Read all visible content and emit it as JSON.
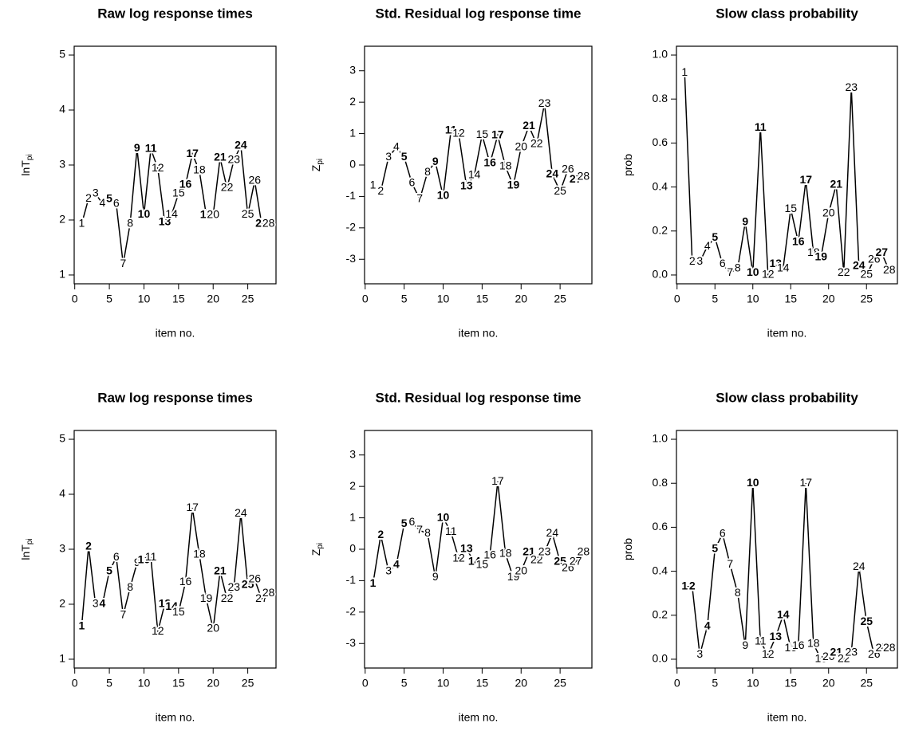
{
  "chart_data": [
    {
      "type": "line",
      "title": "Raw log response times",
      "xlabel": "item no.",
      "ylabel": "lnT",
      "ylabel_sub": "pi",
      "x": [
        1,
        2,
        3,
        4,
        5,
        6,
        7,
        8,
        9,
        10,
        11,
        12,
        13,
        14,
        15,
        16,
        17,
        18,
        19,
        20,
        21,
        22,
        23,
        24,
        25,
        26,
        27,
        28
      ],
      "values": [
        1.93,
        2.39,
        2.48,
        2.3,
        2.38,
        2.29,
        1.2,
        1.93,
        3.3,
        2.1,
        3.29,
        2.94,
        1.96,
        2.1,
        2.48,
        2.64,
        3.2,
        2.9,
        2.09,
        2.09,
        3.13,
        2.58,
        3.09,
        3.35,
        2.1,
        2.71,
        1.93,
        1.93
      ],
      "bold": [
        5,
        9,
        10,
        11,
        13,
        16,
        17,
        19,
        21,
        24,
        27
      ],
      "color": "#000000",
      "xlim": [
        -0.08,
        29.08
      ],
      "xticks": [
        0,
        5,
        10,
        15,
        20,
        25
      ],
      "ylim": [
        0.84,
        5.16
      ],
      "yticks": [
        1,
        2,
        3,
        4,
        5
      ]
    },
    {
      "type": "line",
      "title": "Std. Residual log response time",
      "xlabel": "item no.",
      "ylabel": "Z",
      "ylabel_sub": "pi",
      "x": [
        1,
        2,
        3,
        4,
        5,
        6,
        7,
        8,
        9,
        10,
        11,
        12,
        13,
        14,
        15,
        16,
        17,
        18,
        19,
        20,
        21,
        22,
        23,
        24,
        25,
        26,
        27,
        28
      ],
      "values": [
        -0.66,
        -0.84,
        0.25,
        0.56,
        0.25,
        -0.58,
        -1.09,
        -0.23,
        0.1,
        -0.99,
        1.09,
        0.99,
        -0.68,
        -0.33,
        0.96,
        0.05,
        0.94,
        -0.05,
        -0.66,
        0.56,
        1.24,
        0.66,
        1.95,
        -0.3,
        -0.84,
        -0.15,
        -0.46,
        -0.38
      ],
      "bold": [
        5,
        9,
        10,
        11,
        13,
        16,
        17,
        19,
        21,
        24,
        27
      ],
      "color": "#000000",
      "xlim": [
        -0.08,
        29.08
      ],
      "xticks": [
        0,
        5,
        10,
        15,
        20,
        25
      ],
      "ylim": [
        -3.78,
        3.78
      ],
      "yticks": [
        -3,
        -2,
        -1,
        0,
        1,
        2,
        3
      ]
    },
    {
      "type": "line",
      "title": "Slow class probability",
      "xlabel": "item no.",
      "ylabel": "prob",
      "x": [
        1,
        2,
        3,
        4,
        5,
        6,
        7,
        8,
        9,
        10,
        11,
        12,
        13,
        14,
        15,
        16,
        17,
        18,
        19,
        20,
        21,
        22,
        23,
        24,
        25,
        26,
        27,
        28
      ],
      "values": [
        0.92,
        0.06,
        0.06,
        0.13,
        0.17,
        0.05,
        0.01,
        0.03,
        0.24,
        0.01,
        0.67,
        0.0,
        0.05,
        0.03,
        0.3,
        0.15,
        0.43,
        0.1,
        0.08,
        0.28,
        0.41,
        0.01,
        0.85,
        0.04,
        0.0,
        0.07,
        0.1,
        0.02
      ],
      "bold": [
        5,
        9,
        10,
        11,
        13,
        16,
        17,
        19,
        21,
        24,
        27
      ],
      "color": "#000000",
      "xlim": [
        -0.08,
        29.08
      ],
      "xticks": [
        0,
        5,
        10,
        15,
        20,
        25
      ],
      "ylim": [
        -0.04,
        1.04
      ],
      "yticks": [
        {
          "value": 0,
          "label": "0.0"
        },
        {
          "value": 0.2,
          "label": "0.2"
        },
        {
          "value": 0.4,
          "label": "0.4"
        },
        {
          "value": 0.6,
          "label": "0.6"
        },
        {
          "value": 0.8,
          "label": "0.8"
        },
        {
          "value": 1,
          "label": "1.0"
        }
      ]
    },
    {
      "type": "line",
      "title": "Raw log response times",
      "xlabel": "item no.",
      "ylabel": "lnT",
      "ylabel_sub": "pi",
      "x": [
        1,
        2,
        3,
        4,
        5,
        6,
        7,
        8,
        9,
        10,
        11,
        12,
        13,
        14,
        15,
        16,
        17,
        18,
        19,
        20,
        21,
        22,
        23,
        24,
        25,
        26,
        27,
        28
      ],
      "values": [
        1.6,
        3.05,
        2.0,
        2.0,
        2.6,
        2.85,
        1.8,
        2.3,
        2.75,
        2.8,
        2.85,
        1.5,
        2.0,
        1.95,
        1.85,
        2.4,
        3.75,
        2.9,
        2.1,
        1.55,
        2.6,
        2.1,
        2.3,
        3.65,
        2.35,
        2.45,
        2.1,
        2.2
      ],
      "bold": [
        1,
        2,
        4,
        5,
        10,
        13,
        14,
        21,
        25
      ],
      "color": "#000000",
      "xlim": [
        -0.08,
        29.08
      ],
      "xticks": [
        0,
        5,
        10,
        15,
        20,
        25
      ],
      "ylim": [
        0.84,
        5.16
      ],
      "yticks": [
        1,
        2,
        3,
        4,
        5
      ]
    },
    {
      "type": "line",
      "title": "Std. Residual log response time",
      "xlabel": "item no.",
      "ylabel": "Z",
      "ylabel_sub": "pi",
      "x": [
        1,
        2,
        3,
        4,
        5,
        6,
        7,
        8,
        9,
        10,
        11,
        12,
        13,
        14,
        15,
        16,
        17,
        18,
        19,
        20,
        21,
        22,
        23,
        24,
        25,
        26,
        27,
        28
      ],
      "values": [
        -1.1,
        0.45,
        -0.7,
        -0.5,
        0.8,
        0.85,
        0.6,
        0.5,
        -0.9,
        1.0,
        0.55,
        -0.3,
        0.0,
        -0.4,
        -0.5,
        -0.2,
        2.15,
        -0.15,
        -0.9,
        -0.7,
        -0.1,
        -0.35,
        -0.1,
        0.5,
        -0.4,
        -0.6,
        -0.4,
        -0.1
      ],
      "bold": [
        1,
        2,
        4,
        5,
        10,
        13,
        14,
        21,
        25
      ],
      "color": "#000000",
      "xlim": [
        -0.08,
        29.08
      ],
      "xticks": [
        0,
        5,
        10,
        15,
        20,
        25
      ],
      "ylim": [
        -3.78,
        3.78
      ],
      "yticks": [
        -3,
        -2,
        -1,
        0,
        1,
        2,
        3
      ]
    },
    {
      "type": "line",
      "title": "Slow class probability",
      "xlabel": "item no.",
      "ylabel": "prob",
      "x": [
        1,
        2,
        3,
        4,
        5,
        6,
        7,
        8,
        9,
        10,
        11,
        12,
        13,
        14,
        15,
        16,
        17,
        18,
        19,
        20,
        21,
        22,
        23,
        24,
        25,
        26,
        27,
        28
      ],
      "values": [
        0.33,
        0.33,
        0.02,
        0.15,
        0.5,
        0.57,
        0.43,
        0.3,
        0.06,
        0.8,
        0.08,
        0.02,
        0.1,
        0.2,
        0.05,
        0.06,
        0.8,
        0.07,
        0.0,
        0.01,
        0.03,
        0.0,
        0.03,
        0.42,
        0.17,
        0.02,
        0.05,
        0.05
      ],
      "bold": [
        1,
        2,
        4,
        5,
        10,
        13,
        14,
        21,
        25
      ],
      "color": "#000000",
      "xlim": [
        -0.08,
        29.08
      ],
      "xticks": [
        0,
        5,
        10,
        15,
        20,
        25
      ],
      "ylim": [
        -0.04,
        1.04
      ],
      "yticks": [
        {
          "value": 0,
          "label": "0.0"
        },
        {
          "value": 0.2,
          "label": "0.2"
        },
        {
          "value": 0.4,
          "label": "0.4"
        },
        {
          "value": 0.6,
          "label": "0.6"
        },
        {
          "value": 0.8,
          "label": "0.8"
        },
        {
          "value": 1,
          "label": "1.0"
        }
      ]
    }
  ]
}
